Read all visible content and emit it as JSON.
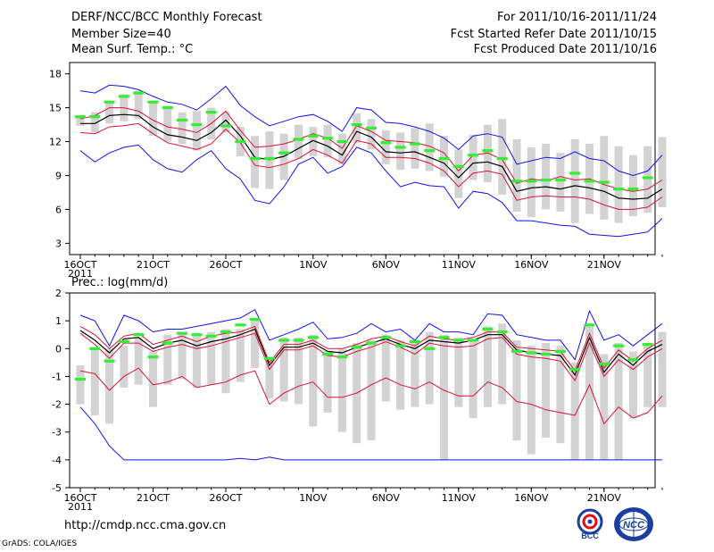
{
  "header": {
    "title": "DERF/NCC/BCC Monthly Forecast",
    "member_size": "Member Size=40",
    "variable1": "Mean Surf. Temp.: °C",
    "period": "For 2011/10/16-2011/11/24",
    "refer_date": "Fcst Started Refer Date 2011/10/15",
    "produced_date": "Fcst Produced Date 2011/10/16"
  },
  "footer": {
    "url": "http://cmdp.ncc.cma.gov.cn",
    "credit": "GrADS: COLA/IGES",
    "logo1_text": "BCC",
    "logo2_text": "NCC"
  },
  "colors": {
    "box": "#d3d3d3",
    "member": "#33ee33",
    "mean": "#000000",
    "band": "#dd1133",
    "envelope": "#1111ee"
  },
  "chart_data": [
    {
      "type": "box-plume",
      "title": "Mean Surf. Temp.: °C",
      "ylim": [
        2,
        19
      ],
      "yticks": [
        3,
        6,
        9,
        12,
        15,
        18
      ],
      "xticks": [
        {
          "day": 0,
          "label": "16OCT",
          "sub": "2011"
        },
        {
          "day": 5,
          "label": "21OCT"
        },
        {
          "day": 10,
          "label": "26OCT"
        },
        {
          "day": 16,
          "label": "1NOV"
        },
        {
          "day": 21,
          "label": "6NOV"
        },
        {
          "day": 26,
          "label": "11NOV"
        },
        {
          "day": 31,
          "label": "16NOV"
        },
        {
          "day": 36,
          "label": "21NOV"
        }
      ],
      "days": 40,
      "series": [
        {
          "name": "member",
          "values": [
            14.2,
            14.2,
            15.5,
            16.0,
            16.3,
            15.5,
            15.0,
            13.9,
            13.5,
            14.6,
            13.4,
            12.0,
            10.5,
            10.5,
            11.0,
            12.2,
            12.5,
            12.3,
            12.0,
            13.5,
            13.2,
            11.9,
            11.5,
            11.8,
            11.2,
            10.5,
            9.8,
            10.8,
            11.2,
            10.5,
            8.5,
            8.5,
            8.6,
            8.6,
            9.2,
            8.5,
            8.4,
            7.8,
            7.8,
            8.8
          ]
        },
        {
          "name": "max",
          "values": [
            16.5,
            16.3,
            17.0,
            16.9,
            16.6,
            16.0,
            15.5,
            15.3,
            14.8,
            15.8,
            16.9,
            15.2,
            14.2,
            13.4,
            13.8,
            14.2,
            14.4,
            13.8,
            12.9,
            15.0,
            14.8,
            13.7,
            13.6,
            13.3,
            12.9,
            12.3,
            11.3,
            12.5,
            12.7,
            12.4,
            10.0,
            10.3,
            10.6,
            10.5,
            11.1,
            10.5,
            10.3,
            9.4,
            9.0,
            9.4,
            10.8
          ]
        },
        {
          "name": "band_upper",
          "values": [
            14.0,
            14.3,
            15.0,
            15.0,
            14.7,
            13.9,
            13.3,
            13.1,
            12.8,
            13.6,
            14.7,
            13.0,
            11.5,
            11.6,
            11.8,
            12.2,
            12.7,
            12.3,
            11.4,
            13.4,
            12.9,
            12.1,
            12.0,
            11.9,
            11.6,
            11.0,
            9.4,
            10.8,
            11.0,
            10.4,
            8.3,
            8.7,
            8.5,
            8.9,
            8.6,
            8.7,
            8.2,
            7.8,
            7.6,
            7.8,
            8.6
          ]
        },
        {
          "name": "mean",
          "values": [
            13.6,
            13.6,
            14.3,
            14.4,
            14.3,
            13.3,
            12.6,
            12.4,
            12.1,
            12.8,
            13.9,
            12.5,
            10.6,
            10.4,
            10.7,
            11.4,
            12.1,
            11.6,
            10.8,
            12.9,
            12.4,
            11.1,
            11.0,
            11.1,
            10.6,
            10.1,
            8.8,
            10.1,
            10.2,
            9.8,
            7.6,
            7.9,
            8.0,
            7.8,
            8.1,
            7.9,
            7.6,
            7.0,
            6.9,
            7.0,
            7.8
          ]
        },
        {
          "name": "band_lower",
          "values": [
            12.8,
            12.7,
            13.3,
            13.4,
            13.6,
            12.7,
            11.9,
            11.6,
            11.3,
            11.8,
            13.1,
            11.9,
            9.9,
            9.7,
            10.0,
            10.5,
            11.3,
            10.8,
            10.1,
            12.1,
            11.8,
            10.6,
            10.6,
            10.5,
            10.1,
            9.4,
            8.0,
            9.2,
            9.4,
            9.1,
            6.8,
            7.1,
            7.2,
            7.1,
            7.1,
            6.9,
            6.4,
            6.0,
            6.0,
            6.2,
            7.1
          ]
        },
        {
          "name": "min",
          "values": [
            11.2,
            10.2,
            11.0,
            11.5,
            11.7,
            10.4,
            9.6,
            9.3,
            10.4,
            11.2,
            9.6,
            8.7,
            6.8,
            6.5,
            8.0,
            10.0,
            10.6,
            9.2,
            9.8,
            11.5,
            11.0,
            9.4,
            8.0,
            8.4,
            8.1,
            8.0,
            6.1,
            7.6,
            7.4,
            6.6,
            5.0,
            5.0,
            4.8,
            4.6,
            4.5,
            3.8,
            3.7,
            3.6,
            3.8,
            4.0,
            5.2
          ]
        },
        {
          "name": "box_high",
          "values": [
            14.2,
            14.6,
            15.5,
            16.2,
            16.5,
            15.5,
            15.0,
            14.6,
            14.7,
            15.0,
            14.6,
            13.3,
            12.5,
            12.9,
            12.7,
            13.5,
            13.3,
            13.5,
            12.7,
            14.5,
            14.0,
            13.0,
            12.8,
            13.2,
            13.6,
            12.5,
            11.3,
            12.6,
            13.5,
            14.0,
            12.2,
            11.5,
            11.8,
            11.0,
            12.2,
            11.8,
            12.5,
            11.6,
            10.8,
            11.6,
            12.4
          ]
        },
        {
          "name": "box_low",
          "values": [
            13.4,
            12.8,
            13.6,
            13.8,
            14.0,
            12.5,
            12.0,
            11.8,
            11.2,
            12.2,
            12.8,
            10.7,
            7.9,
            7.8,
            8.6,
            10.5,
            10.7,
            10.6,
            10.0,
            11.9,
            11.3,
            10.0,
            9.5,
            9.6,
            9.4,
            8.9,
            7.0,
            8.6,
            8.4,
            7.3,
            5.8,
            5.3,
            6.0,
            5.8,
            4.8,
            5.6,
            5.1,
            4.8,
            5.4,
            5.7,
            6.2
          ]
        }
      ]
    },
    {
      "type": "box-plume",
      "title": "Prec.: log(mm/d)",
      "ylim": [
        -5,
        2
      ],
      "yticks": [
        -5,
        -4,
        -3,
        -2,
        -1,
        0,
        1,
        2
      ],
      "xticks": [
        {
          "day": 0,
          "label": "16OCT",
          "sub": "2011"
        },
        {
          "day": 5,
          "label": "21OCT"
        },
        {
          "day": 10,
          "label": "26OCT"
        },
        {
          "day": 16,
          "label": "1NOV"
        },
        {
          "day": 21,
          "label": "6NOV"
        },
        {
          "day": 26,
          "label": "11NOV"
        },
        {
          "day": 31,
          "label": "16NOV"
        },
        {
          "day": 36,
          "label": "21NOV"
        }
      ],
      "days": 40,
      "series": [
        {
          "name": "member",
          "values": [
            -1.1,
            0.0,
            -0.45,
            0.25,
            0.5,
            -0.3,
            0.2,
            0.55,
            0.5,
            0.45,
            0.6,
            0.85,
            1.05,
            -0.35,
            0.3,
            0.3,
            0.4,
            -0.2,
            -0.3,
            0.05,
            0.2,
            0.4,
            0.1,
            0.25,
            0.0,
            0.4,
            0.3,
            0.3,
            0.7,
            0.6,
            -0.1,
            -0.15,
            -0.2,
            -0.1,
            -0.75,
            0.85,
            -0.55,
            0.1,
            -0.4,
            0.15
          ]
        },
        {
          "name": "max",
          "values": [
            1.2,
            1.0,
            0.1,
            1.2,
            1.0,
            0.6,
            0.7,
            0.7,
            0.8,
            0.9,
            1.0,
            1.1,
            1.4,
            0.3,
            0.5,
            0.7,
            0.95,
            0.35,
            0.4,
            0.55,
            0.9,
            0.6,
            0.7,
            0.3,
            0.9,
            0.6,
            0.6,
            0.5,
            1.25,
            1.2,
            0.5,
            0.4,
            0.3,
            0.3,
            -0.4,
            1.35,
            0.3,
            0.5,
            0.1,
            0.5,
            0.9
          ]
        },
        {
          "name": "band_upper",
          "values": [
            0.8,
            0.5,
            0.0,
            0.45,
            0.55,
            0.15,
            0.3,
            0.45,
            0.25,
            0.45,
            0.55,
            0.6,
            0.8,
            -0.5,
            0.15,
            0.15,
            0.3,
            0.0,
            0.0,
            0.15,
            0.35,
            0.45,
            0.25,
            0.1,
            0.45,
            0.35,
            0.3,
            0.4,
            0.6,
            0.6,
            0.05,
            0.0,
            -0.05,
            -0.1,
            -0.8,
            0.55,
            -0.7,
            -0.05,
            -0.45,
            0.0,
            0.3
          ]
        },
        {
          "name": "mean",
          "values": [
            0.65,
            0.3,
            -0.15,
            0.35,
            0.4,
            0.0,
            0.2,
            0.3,
            0.1,
            0.25,
            0.35,
            0.5,
            0.7,
            -0.6,
            0.05,
            0.05,
            0.2,
            -0.1,
            -0.15,
            0.05,
            0.2,
            0.35,
            0.15,
            0.0,
            0.3,
            0.25,
            0.2,
            0.3,
            0.5,
            0.5,
            -0.05,
            -0.15,
            -0.2,
            -0.25,
            -0.95,
            0.4,
            -0.85,
            -0.2,
            -0.6,
            -0.1,
            0.15
          ]
        },
        {
          "name": "band_lower",
          "values": [
            0.55,
            0.15,
            -0.35,
            0.2,
            0.2,
            -0.1,
            0.05,
            0.15,
            0.0,
            0.1,
            0.25,
            0.4,
            0.55,
            -0.75,
            -0.05,
            -0.05,
            0.1,
            -0.25,
            -0.3,
            -0.1,
            0.05,
            0.25,
            0.05,
            -0.2,
            0.2,
            0.1,
            0.05,
            0.1,
            0.35,
            0.4,
            -0.2,
            -0.3,
            -0.35,
            -0.45,
            -1.15,
            0.2,
            -1.0,
            -0.4,
            -0.75,
            -0.3,
            0.0
          ]
        },
        {
          "name": "low",
          "values": [
            -0.8,
            -0.9,
            -1.5,
            -1.0,
            -0.7,
            -1.3,
            -1.2,
            -1.0,
            -1.4,
            -1.3,
            -1.2,
            -0.95,
            -0.8,
            -2.0,
            -1.6,
            -1.35,
            -1.2,
            -1.75,
            -1.75,
            -1.6,
            -1.3,
            -1.05,
            -1.3,
            -1.45,
            -1.2,
            -1.5,
            -1.7,
            -1.7,
            -1.2,
            -1.4,
            -1.9,
            -2.0,
            -2.2,
            -2.3,
            -2.4,
            -1.3,
            -2.7,
            -2.1,
            -2.5,
            -2.3,
            -1.7
          ]
        },
        {
          "name": "min",
          "values": [
            -2.1,
            -2.7,
            -3.5,
            -4.0,
            -4.0,
            -4.0,
            -4.0,
            -4.0,
            -4.0,
            -4.0,
            -4.0,
            -3.95,
            -4.0,
            -3.9,
            -4.0,
            -4.0,
            -4.0,
            -4.0,
            -4.0,
            -4.0,
            -4.0,
            -4.0,
            -4.0,
            -4.0,
            -4.0,
            -4.0,
            -4.0,
            -4.0,
            -4.0,
            -4.0,
            -4.0,
            -4.0,
            -4.0,
            -4.0,
            -4.0,
            -4.0,
            -4.0,
            -4.0,
            -4.0,
            -4.0,
            -4.0
          ]
        },
        {
          "name": "box_high",
          "values": [
            -0.6,
            0.0,
            0.0,
            0.1,
            0.4,
            -0.1,
            0.5,
            0.6,
            0.5,
            0.6,
            0.7,
            0.7,
            1.0,
            -0.3,
            0.4,
            0.4,
            0.5,
            -0.1,
            0.0,
            0.2,
            0.3,
            0.5,
            0.3,
            0.2,
            0.6,
            0.5,
            0.4,
            0.3,
            0.8,
            0.9,
            0.3,
            0.1,
            0.2,
            0.1,
            -0.5,
            0.9,
            -0.2,
            0.2,
            -0.1,
            0.1,
            0.6
          ]
        },
        {
          "name": "box_low",
          "values": [
            -2.0,
            -2.4,
            -2.7,
            -1.4,
            -1.3,
            -2.1,
            -1.3,
            -1.1,
            -1.4,
            -1.3,
            -1.6,
            -1.2,
            -0.7,
            -1.8,
            -1.9,
            -2.0,
            -2.8,
            -2.3,
            -3.0,
            -3.4,
            -3.3,
            -1.9,
            -2.2,
            -2.1,
            -2.0,
            -4.0,
            -2.1,
            -2.5,
            -2.1,
            -2.0,
            -3.3,
            -3.8,
            -3.2,
            -3.4,
            -4.0,
            -4.0,
            -4.0,
            -4.0,
            -2.5,
            -2.1,
            -2.1
          ]
        }
      ]
    }
  ]
}
